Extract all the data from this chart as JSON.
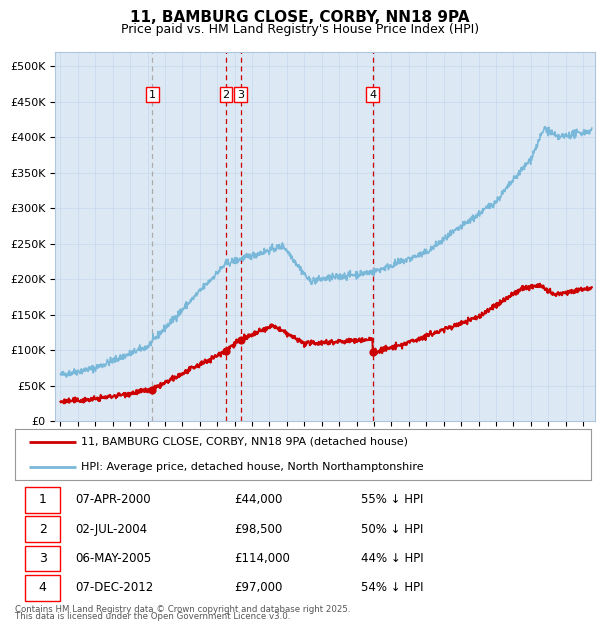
{
  "title": "11, BAMBURG CLOSE, CORBY, NN18 9PA",
  "subtitle": "Price paid vs. HM Land Registry's House Price Index (HPI)",
  "legend_line1": "11, BAMBURG CLOSE, CORBY, NN18 9PA (detached house)",
  "legend_line2": "HPI: Average price, detached house, North Northamptonshire",
  "footer1": "Contains HM Land Registry data © Crown copyright and database right 2025.",
  "footer2": "This data is licensed under the Open Government Licence v3.0.",
  "hpi_color": "#7ab8d9",
  "price_color": "#cc0000",
  "background_color": "#dce9f5",
  "plot_bg": "#ffffff",
  "grid_color": "#c5d8ec",
  "transactions": [
    {
      "label": "1",
      "date": "07-APR-2000",
      "price": 44000,
      "hpi_pct": "55% ↓ HPI",
      "x_year": 2000.27
    },
    {
      "label": "2",
      "date": "02-JUL-2004",
      "price": 98500,
      "hpi_pct": "50% ↓ HPI",
      "x_year": 2004.5
    },
    {
      "label": "3",
      "date": "06-MAY-2005",
      "price": 114000,
      "hpi_pct": "44% ↓ HPI",
      "x_year": 2005.35
    },
    {
      "label": "4",
      "date": "07-DEC-2012",
      "price": 97000,
      "hpi_pct": "54% ↓ HPI",
      "x_year": 2012.93
    }
  ],
  "ylim": [
    0,
    520000
  ],
  "yticks": [
    0,
    50000,
    100000,
    150000,
    200000,
    250000,
    300000,
    350000,
    400000,
    450000,
    500000
  ],
  "xlim_start": 1994.7,
  "xlim_end": 2025.7,
  "table_rows": [
    [
      "1",
      "07-APR-2000",
      "£44,000",
      "55% ↓ HPI"
    ],
    [
      "2",
      "02-JUL-2004",
      "£98,500",
      "50% ↓ HPI"
    ],
    [
      "3",
      "06-MAY-2005",
      "£114,000",
      "44% ↓ HPI"
    ],
    [
      "4",
      "07-DEC-2012",
      "£97,000",
      "54% ↓ HPI"
    ]
  ]
}
